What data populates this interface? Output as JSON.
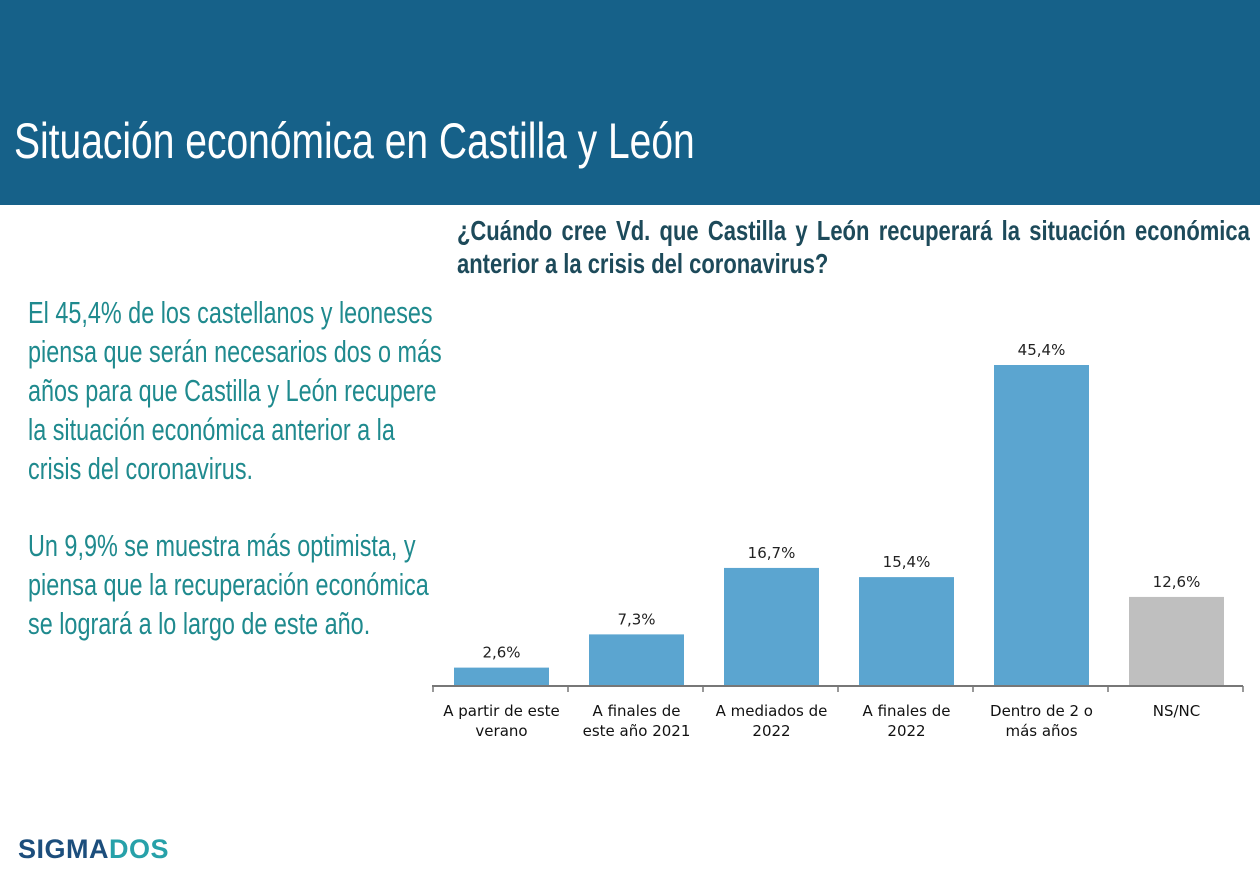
{
  "header": {
    "title": "Situación económica en Castilla y León"
  },
  "question": "¿Cuándo cree Vd. que Castilla y León recuperará la situación económica anterior a la crisis del coronavirus?",
  "summary": [
    "El 45,4% de los castellanos y leoneses piensa que serán necesarios dos o más años para que Castilla y León recupere la situación económica anterior a la crisis del coronavirus.",
    "Un 9,9% se muestra más optimista, y piensa que la recuperación económica se logrará a lo largo de este año."
  ],
  "logo": {
    "part1": "SIGMA",
    "part2": "DOS"
  },
  "chart_data": {
    "type": "bar",
    "title": "",
    "xlabel": "",
    "ylabel": "",
    "ylim": [
      0,
      45.4
    ],
    "grid": false,
    "categories": [
      [
        "A partir de este",
        "verano"
      ],
      [
        "A finales de",
        "este año 2021"
      ],
      [
        "A mediados de",
        "2022"
      ],
      [
        "A finales de",
        "2022"
      ],
      [
        "Dentro de 2 o",
        "más años"
      ],
      [
        "NS/NC"
      ]
    ],
    "values": [
      2.6,
      7.3,
      16.7,
      15.4,
      45.4,
      12.6
    ],
    "data_labels": [
      "2,6%",
      "7,3%",
      "16,7%",
      "15,4%",
      "45,4%",
      "12,6%"
    ],
    "colors": [
      "#5ba5d0",
      "#5ba5d0",
      "#5ba5d0",
      "#5ba5d0",
      "#5ba5d0",
      "#bfbfbf"
    ]
  }
}
